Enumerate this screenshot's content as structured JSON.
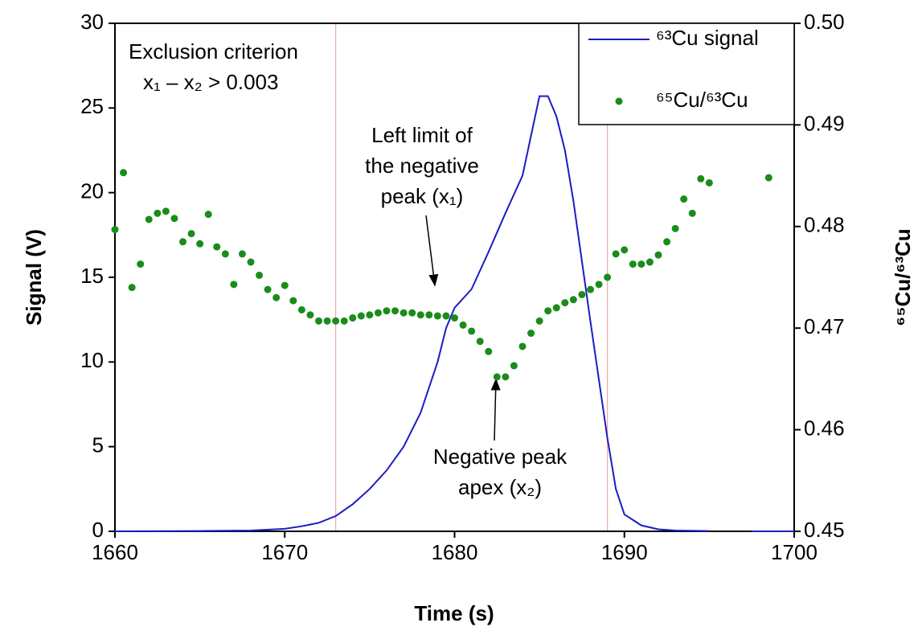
{
  "chart_data": {
    "type": "line-scatter",
    "xlabel": "Time (s)",
    "ylabel": "Signal (V)",
    "y2label": "⁶⁵Cu/⁶³Cu",
    "xlim": [
      1660,
      1700
    ],
    "xticks": [
      1660,
      1670,
      1680,
      1690,
      1700
    ],
    "ylim": [
      0,
      30
    ],
    "yticks": [
      0,
      5,
      10,
      15,
      20,
      25,
      30
    ],
    "y2lim": [
      0.45,
      0.5
    ],
    "y2ticks": [
      {
        "value": 0.45,
        "label": "0.45"
      },
      {
        "value": 0.46,
        "label": "0.46"
      },
      {
        "value": 0.47,
        "label": "0.47"
      },
      {
        "value": 0.48,
        "label": "0.48"
      },
      {
        "value": 0.49,
        "label": "0.49"
      },
      {
        "value": 0.5,
        "label": "0.50"
      }
    ],
    "vlines": [
      1673,
      1689
    ],
    "vline_color": "#f2a6a6",
    "legend": "upper right",
    "series": [
      {
        "name": "⁶³Cu signal",
        "type": "line",
        "color": "#1c1cc4",
        "x": [
          1660,
          1665,
          1668,
          1670,
          1671,
          1672,
          1673,
          1674,
          1675,
          1676,
          1677,
          1678,
          1679,
          1679.5,
          1680,
          1681,
          1682,
          1683,
          1684,
          1685,
          1685.5,
          1686,
          1686.5,
          1687,
          1688,
          1689,
          1689.5,
          1690,
          1691,
          1692,
          1693,
          1695,
          1696,
          1697.5,
          1700
        ],
        "values": [
          0,
          0.02,
          0.05,
          0.15,
          0.3,
          0.5,
          0.9,
          1.6,
          2.5,
          3.6,
          5.0,
          7.0,
          10.0,
          12.0,
          13.2,
          14.3,
          16.5,
          18.8,
          21.0,
          25.7,
          25.7,
          24.5,
          22.5,
          19.5,
          12.4,
          5.5,
          2.5,
          1.0,
          0.35,
          0.12,
          0.05,
          0.02,
          null,
          0,
          0
        ]
      },
      {
        "name": "⁶⁵Cu/⁶³Cu",
        "type": "scatter",
        "axis": "y2",
        "color": "#1a8c1a",
        "x": [
          1660,
          1660.5,
          1661,
          1661.5,
          1662,
          1662.5,
          1663,
          1663.5,
          1664,
          1664.5,
          1665,
          1665.5,
          1666,
          1666.5,
          1667,
          1667.5,
          1668,
          1668.5,
          1669,
          1669.5,
          1670,
          1670.5,
          1671,
          1671.5,
          1672,
          1672.5,
          1673,
          1673.5,
          1674,
          1674.5,
          1675,
          1675.5,
          1676,
          1676.5,
          1677,
          1677.5,
          1678,
          1678.5,
          1679,
          1679.5,
          1680,
          1680.5,
          1681,
          1681.5,
          1682,
          1682.5,
          1683,
          1683.5,
          1684,
          1684.5,
          1685,
          1685.5,
          1686,
          1686.5,
          1687,
          1687.5,
          1688,
          1688.5,
          1689,
          1689.5,
          1690,
          1690.5,
          1691,
          1691.5,
          1692,
          1692.5,
          1693,
          1693.5,
          1694,
          1694.5,
          1695,
          1698.5
        ],
        "values": [
          0.4797,
          0.4853,
          0.474,
          0.4763,
          0.4807,
          0.4813,
          0.4815,
          0.4808,
          0.4785,
          0.4793,
          0.4783,
          0.4812,
          0.478,
          0.4773,
          0.4743,
          0.4773,
          0.4765,
          0.4752,
          0.4738,
          0.473,
          0.4742,
          0.4727,
          0.4718,
          0.4713,
          0.4707,
          0.4707,
          0.4707,
          0.4707,
          0.471,
          0.4712,
          0.4713,
          0.4715,
          0.4717,
          0.4717,
          0.4715,
          0.4715,
          0.4713,
          0.4713,
          0.4712,
          0.4712,
          0.471,
          0.4703,
          0.4697,
          0.4687,
          0.4677,
          0.4652,
          0.4652,
          0.4663,
          0.4682,
          0.4695,
          0.4707,
          0.4717,
          0.472,
          0.4725,
          0.4728,
          0.4733,
          0.4738,
          0.4743,
          0.475,
          0.4773,
          0.4777,
          0.4763,
          0.4763,
          0.4765,
          0.4772,
          0.4785,
          0.4798,
          0.4827,
          0.4813,
          0.4847,
          0.4843,
          0.4848
        ]
      }
    ],
    "annotations": [
      {
        "lines": [
          "Exclusion criterion",
          "x₁ – x₂ > 0.003"
        ]
      },
      {
        "lines": [
          "Left limit of",
          "the negative",
          "peak (x₁)"
        ]
      },
      {
        "lines": [
          "Negative peak",
          "apex (x₂)"
        ]
      }
    ]
  }
}
